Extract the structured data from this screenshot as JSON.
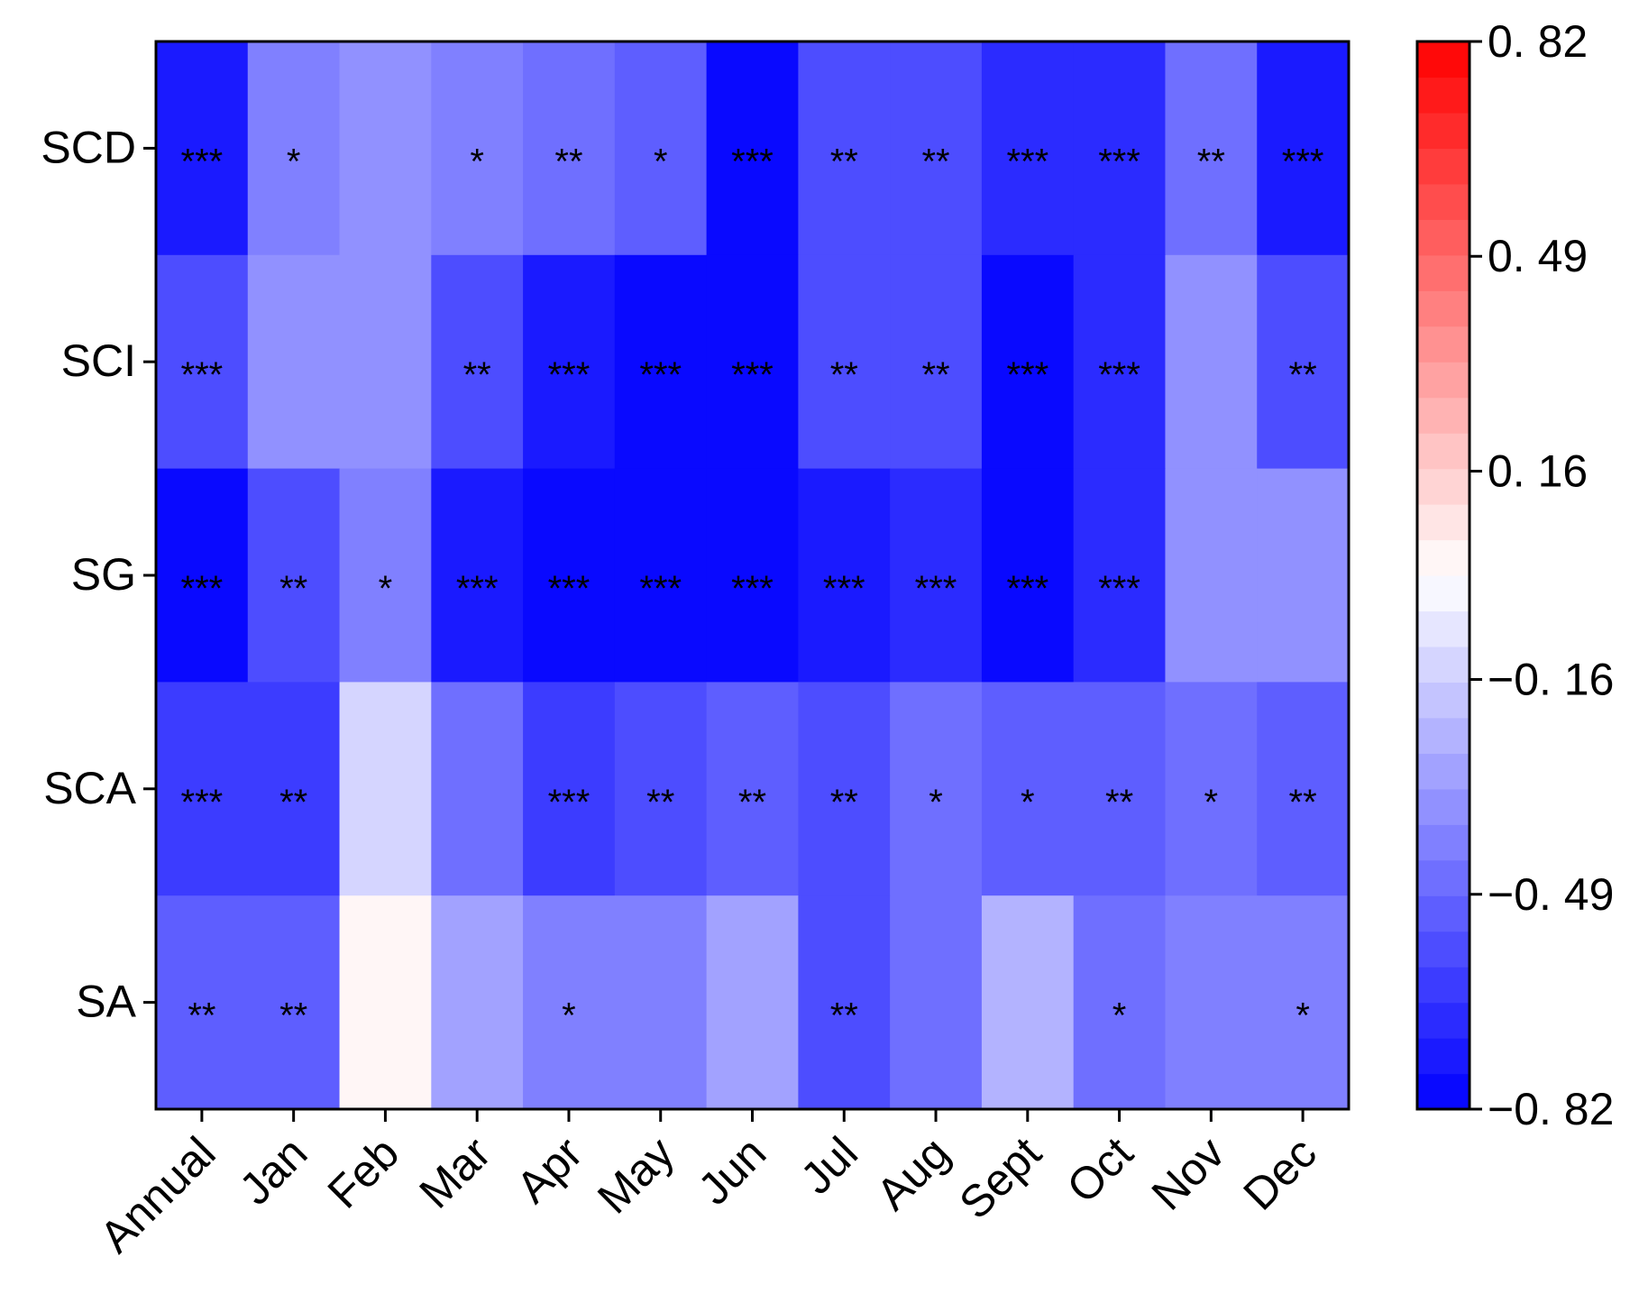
{
  "chart_data": {
    "type": "heatmap",
    "x_categories": [
      "Annual",
      "Jan",
      "Feb",
      "Mar",
      "Apr",
      "May",
      "Jun",
      "Jul",
      "Aug",
      "Sept",
      "Oct",
      "Nov",
      "Dec"
    ],
    "y_categories": [
      "SCD",
      "SCI",
      "SG",
      "SCA",
      "SA"
    ],
    "values": [
      [
        -0.72,
        -0.42,
        -0.36,
        -0.4,
        -0.46,
        -0.5,
        -0.78,
        -0.56,
        -0.56,
        -0.66,
        -0.66,
        -0.48,
        -0.72
      ],
      [
        -0.58,
        -0.36,
        -0.36,
        -0.6,
        -0.72,
        -0.82,
        -0.8,
        -0.56,
        -0.56,
        -0.82,
        -0.66,
        -0.36,
        -0.56
      ],
      [
        -0.82,
        -0.56,
        -0.42,
        -0.76,
        -0.82,
        -0.82,
        -0.8,
        -0.76,
        -0.66,
        -0.82,
        -0.7,
        -0.36,
        -0.36
      ],
      [
        -0.62,
        -0.62,
        -0.14,
        -0.46,
        -0.64,
        -0.58,
        -0.52,
        -0.56,
        -0.46,
        -0.5,
        -0.5,
        -0.46,
        -0.52
      ],
      [
        -0.54,
        -0.54,
        0.02,
        -0.3,
        -0.4,
        -0.4,
        -0.28,
        -0.56,
        -0.44,
        -0.24,
        -0.46,
        -0.4,
        -0.42
      ]
    ],
    "significance": [
      [
        "***",
        "*",
        "",
        "*",
        "**",
        "*",
        "***",
        "**",
        "**",
        "***",
        "***",
        "**",
        "***"
      ],
      [
        "***",
        "",
        "",
        "**",
        "***",
        "***",
        "***",
        "**",
        "**",
        "***",
        "***",
        "",
        "**"
      ],
      [
        "***",
        "**",
        "*",
        "***",
        "***",
        "***",
        "***",
        "***",
        "***",
        "***",
        "***",
        "",
        ""
      ],
      [
        "***",
        "**",
        "",
        "",
        "***",
        "**",
        "**",
        "**",
        "*",
        "*",
        "**",
        "*",
        "**"
      ],
      [
        "**",
        "**",
        "",
        "",
        "*",
        "",
        "",
        "**",
        "",
        "",
        "*",
        "",
        "*"
      ]
    ],
    "colorbar": {
      "min": -0.82,
      "max": 0.82,
      "levels": 30,
      "tick_values": [
        0.82,
        0.49,
        0.16,
        -0.16,
        -0.49,
        -0.82
      ],
      "tick_labels": [
        "0. 82",
        "0. 49",
        "0. 16",
        "−0. 16",
        "−0. 49",
        "−0. 82"
      ],
      "low_color": "#0000ff",
      "mid_color": "#ffffff",
      "high_color": "#ff0000"
    },
    "title": "",
    "xlabel": "",
    "ylabel": ""
  }
}
